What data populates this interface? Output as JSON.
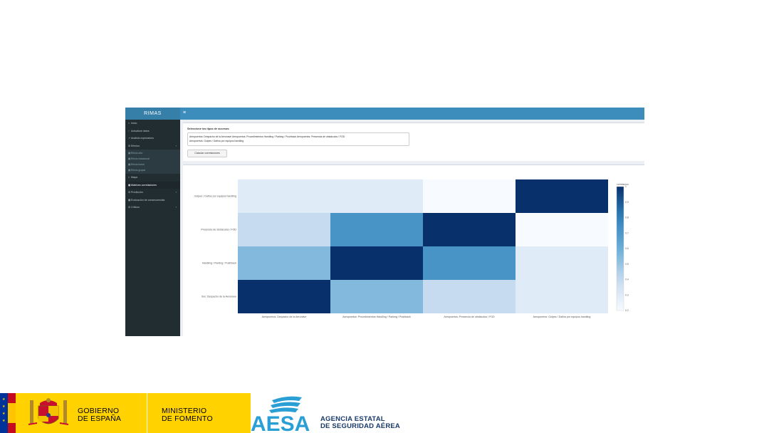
{
  "app": {
    "brand": "RIMAS",
    "sidebar": {
      "items": [
        {
          "icon": "home-icon",
          "glyph": "⌂",
          "label": "Inicio"
        },
        {
          "icon": "upload-icon",
          "glyph": "↑",
          "label": "Actualizar datos"
        },
        {
          "icon": "chart-icon",
          "glyph": "↗",
          "label": "Análisis exploratorio"
        },
        {
          "icon": "cog-icon",
          "glyph": "⚙",
          "label": "Efectos",
          "expandable": true
        },
        {
          "icon": "map-icon",
          "glyph": "⌖",
          "label": "Mapa"
        },
        {
          "icon": "table-icon",
          "glyph": "▦",
          "label": "Matrices correlaciones",
          "active": true
        },
        {
          "icon": "cog-icon",
          "glyph": "⚙",
          "label": "Predicción",
          "expandable": true
        },
        {
          "icon": "table-icon",
          "glyph": "▦",
          "label": "Evaluación de consecuencias"
        },
        {
          "icon": "cog-icon",
          "glyph": "⚙",
          "label": "Criticos",
          "expandable": true
        }
      ],
      "subitems": [
        "Efecto año",
        "Efecto estacional",
        "Efecto lineal",
        "Efecto grupal"
      ]
    },
    "selector": {
      "label": "Seleccione los tipos de sucesos:",
      "tags_line1": "Aeropuertos: Despacho de la Aeronave  Aeropuertos: Procedimientos Handling / Parking / Pushback  Aeropuertos: Presencia de obstáculos / FOD",
      "tags_line2": "Aeropuertos: Golpes / Daños por equipos handling"
    },
    "calc_button": "Calcular correlaciones"
  },
  "chart_data": {
    "type": "heatmap",
    "x_categories": [
      "Aeropuertos: Despacho de la Aeronave",
      "Aeropuertos: Procedimientos Handling / Parking / Pushback",
      "Aeropuertos: Presencia de obstáculos / FOD",
      "Aeropuertos: Golpes / Daños por equipos handling"
    ],
    "y_categories": [
      ": Golpes / Daños por equipos handling",
      "Presencia de obstáculos / FOD",
      " Handling / Parking / Pushback",
      "rtos: Despacho de la Aeronave"
    ],
    "values": [
      [
        0.3,
        0.3,
        0.15,
        1.0
      ],
      [
        0.4,
        0.72,
        1.0,
        0.15
      ],
      [
        0.55,
        1.0,
        0.72,
        0.3
      ],
      [
        1.0,
        0.55,
        0.4,
        0.3
      ]
    ],
    "colorbar": {
      "title": "correlacion",
      "range": [
        0.2,
        1.0
      ],
      "ticks": [
        "0.2",
        "0.3",
        "0.4",
        "0.5",
        "0.6",
        "0.7",
        "0.8",
        "0.9",
        "1"
      ]
    }
  },
  "footer": {
    "gobierno_line1": "GOBIERNO",
    "gobierno_line2": "DE ESPAÑA",
    "ministerio_line1": "MINISTERIO",
    "ministerio_line2": "DE FOMENTO",
    "aesa_logo_text": "AESA",
    "aesa_line1": "AGENCIA ESTATAL",
    "aesa_line2": "DE SEGURIDAD AÉREA"
  }
}
